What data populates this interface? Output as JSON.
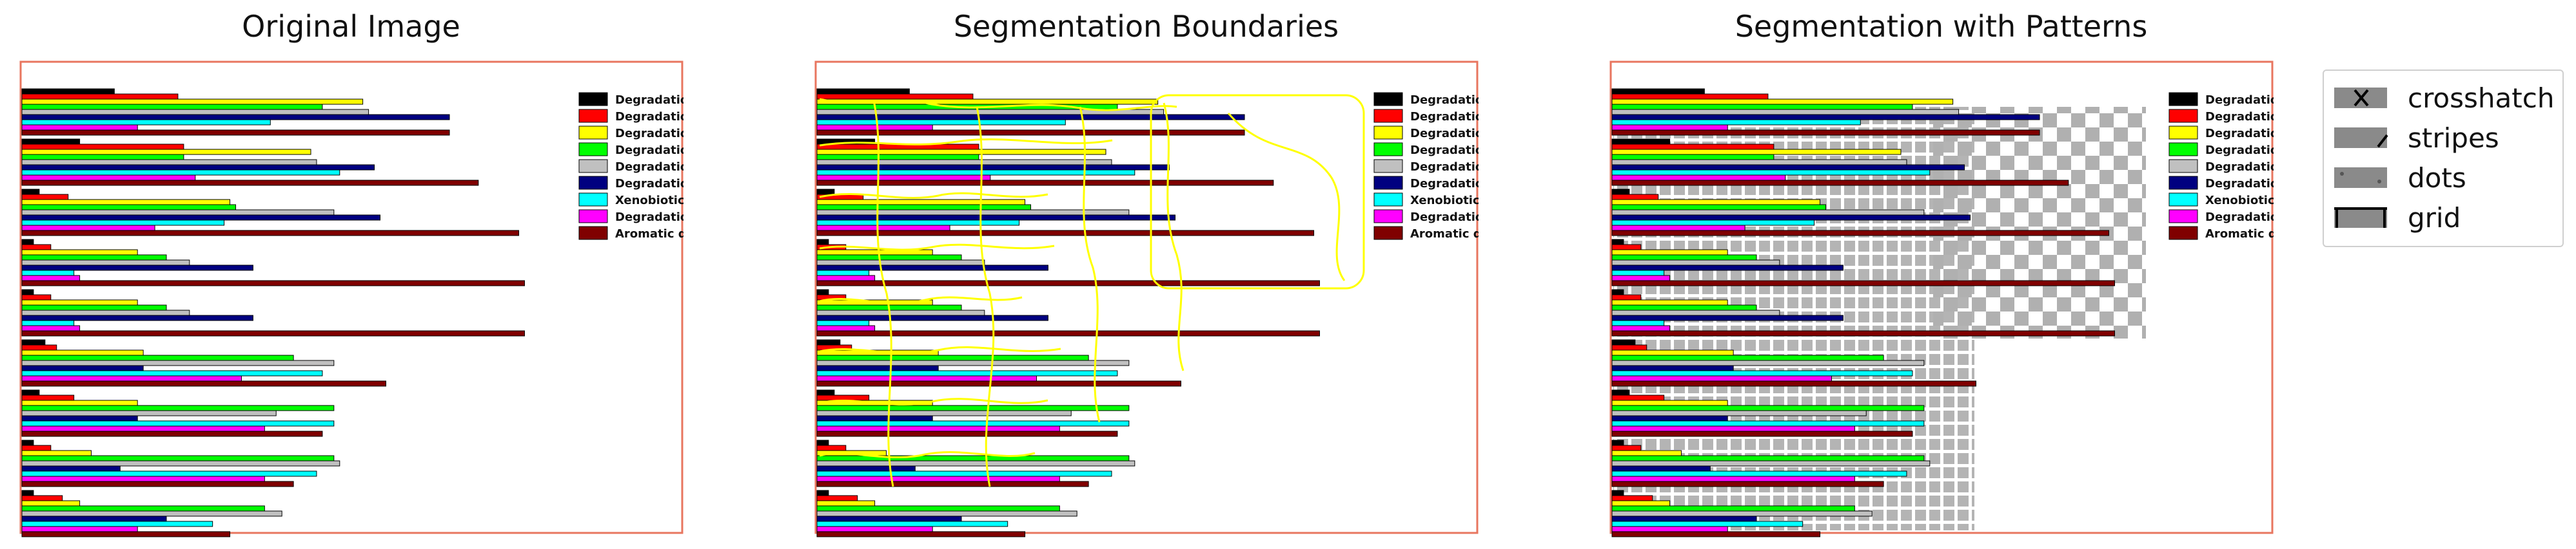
{
  "panels": [
    {
      "title": "Original Image"
    },
    {
      "title": "Segmentation Boundaries"
    },
    {
      "title": "Segmentation with Patterns"
    }
  ],
  "inner_legend": [
    {
      "label": "Degradation",
      "color": "#000000"
    },
    {
      "label": "Degradation",
      "color": "#ff0000"
    },
    {
      "label": "Degradation",
      "color": "#ffff00"
    },
    {
      "label": "Degradation",
      "color": "#00ff00"
    },
    {
      "label": "Degradation",
      "color": "#c0c0c0"
    },
    {
      "label": "Degradation",
      "color": "#000080"
    },
    {
      "label": "Xenobiotic I",
      "color": "#00ffff"
    },
    {
      "label": "Degradation",
      "color": "#ff00ff"
    },
    {
      "label": "Aromatic de",
      "color": "#800000"
    }
  ],
  "pattern_legend": [
    {
      "label": "crosshatch",
      "symbol": "x"
    },
    {
      "label": "stripes",
      "symbol": "/"
    },
    {
      "label": "dots",
      "symbol": "."
    },
    {
      "label": "grid",
      "symbol": "+"
    }
  ],
  "colors": {
    "frame": "#e8765f",
    "boundary": "#ffff00",
    "pattern_gray": "#808080"
  },
  "bar_series_colors": [
    "#000000",
    "#ff0000",
    "#ffff00",
    "#00ff00",
    "#c0c0c0",
    "#000080",
    "#00ffff",
    "#ff00ff",
    "#800000"
  ]
}
